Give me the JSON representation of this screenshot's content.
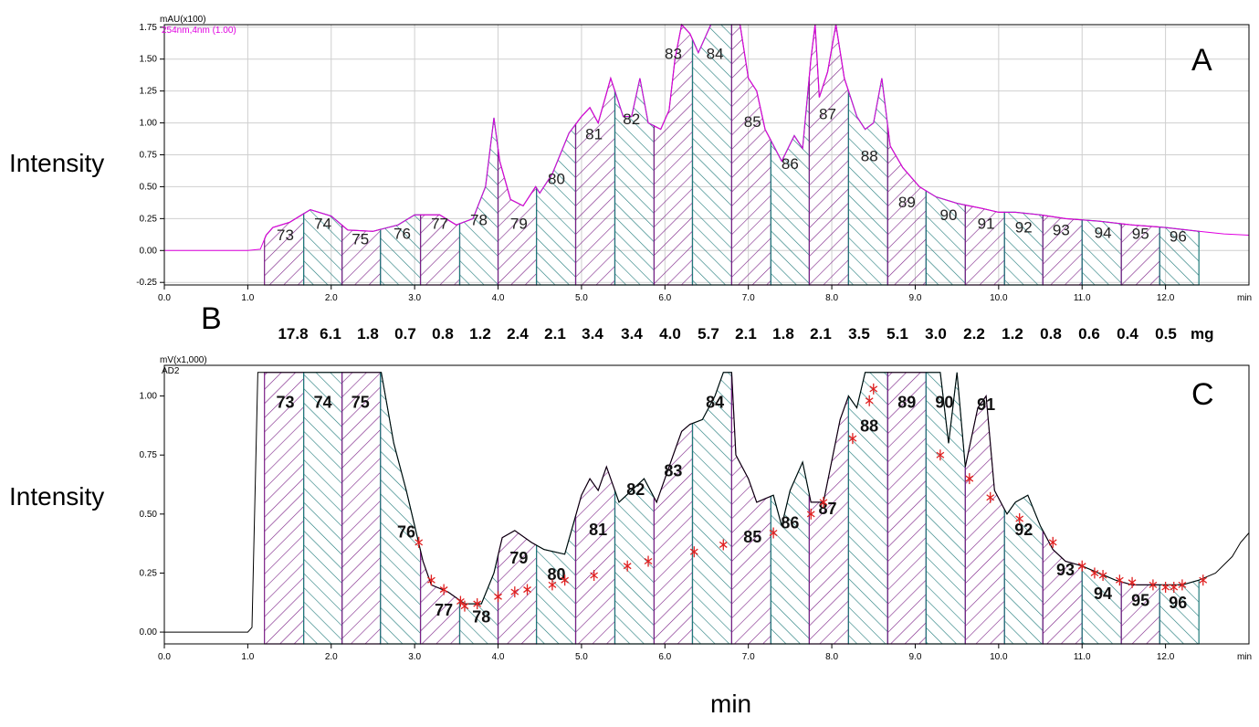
{
  "y_axis_label": "Intensity",
  "x_axis_label": "min",
  "panel_b_letter": "B",
  "mass_unit": "mg",
  "masses": [
    "17.8",
    "6.1",
    "1.8",
    "0.7",
    "0.8",
    "1.2",
    "2.4",
    "2.1",
    "3.4",
    "3.4",
    "4.0",
    "5.7",
    "2.1",
    "1.8",
    "2.1",
    "3.5",
    "5.1",
    "3.0",
    "2.2",
    "1.2",
    "0.8",
    "0.6",
    "0.4",
    "0.5"
  ],
  "colors": {
    "purple": "#7b1f86",
    "teal": "#1f7a7a",
    "trace_a": "#2f6a8f",
    "trace_c": "#1f6f6f",
    "magenta": "#e000e0",
    "marker": "#e02020"
  },
  "chart_data": [
    {
      "type": "area",
      "panel": "A",
      "unit_label": "mAU(x100)",
      "channel_label": "254nm,4nm (1.00)",
      "xlabel": "min",
      "xlim": [
        0,
        13.0
      ],
      "ylim": [
        -0.27,
        1.77
      ],
      "x_ticks": [
        0.0,
        1.0,
        2.0,
        3.0,
        4.0,
        5.0,
        6.0,
        7.0,
        8.0,
        9.0,
        10.0,
        11.0,
        12.0
      ],
      "y_ticks": [
        -0.25,
        0.0,
        0.25,
        0.5,
        0.75,
        1.0,
        1.25,
        1.5,
        1.75
      ],
      "grid": true,
      "boundaries": [
        1.2,
        1.67,
        2.13,
        2.59,
        3.07,
        3.54,
        4.0,
        4.46,
        4.93,
        5.4,
        5.87,
        6.33,
        6.8,
        7.27,
        7.73,
        8.2,
        8.67,
        9.13,
        9.6,
        10.07,
        10.53,
        11.0,
        11.47,
        11.93,
        12.4
      ],
      "fractions": [
        "73",
        "74",
        "75",
        "76",
        "77",
        "78",
        "79",
        "80",
        "81",
        "82",
        "83",
        "84",
        "85",
        "86",
        "87",
        "88",
        "89",
        "90",
        "91",
        "92",
        "93",
        "94",
        "95",
        "96"
      ],
      "trace": [
        [
          0,
          0
        ],
        [
          1.0,
          0
        ],
        [
          1.15,
          0.01
        ],
        [
          1.22,
          0.12
        ],
        [
          1.3,
          0.18
        ],
        [
          1.5,
          0.22
        ],
        [
          1.75,
          0.32
        ],
        [
          2.0,
          0.27
        ],
        [
          2.2,
          0.16
        ],
        [
          2.5,
          0.15
        ],
        [
          2.8,
          0.2
        ],
        [
          3.0,
          0.28
        ],
        [
          3.3,
          0.28
        ],
        [
          3.5,
          0.2
        ],
        [
          3.7,
          0.25
        ],
        [
          3.85,
          0.5
        ],
        [
          3.95,
          1.04
        ],
        [
          4.02,
          0.7
        ],
        [
          4.15,
          0.4
        ],
        [
          4.3,
          0.35
        ],
        [
          4.45,
          0.5
        ],
        [
          4.5,
          0.45
        ],
        [
          4.65,
          0.6
        ],
        [
          4.85,
          0.92
        ],
        [
          5.0,
          1.05
        ],
        [
          5.1,
          1.12
        ],
        [
          5.2,
          1.0
        ],
        [
          5.35,
          1.35
        ],
        [
          5.5,
          1.05
        ],
        [
          5.6,
          1.05
        ],
        [
          5.7,
          1.35
        ],
        [
          5.8,
          1.0
        ],
        [
          5.95,
          0.95
        ],
        [
          6.05,
          1.1
        ],
        [
          6.12,
          1.5
        ],
        [
          6.2,
          1.85
        ],
        [
          6.3,
          1.7
        ],
        [
          6.4,
          1.55
        ],
        [
          6.55,
          1.85
        ],
        [
          6.9,
          1.85
        ],
        [
          7.0,
          1.35
        ],
        [
          7.1,
          1.25
        ],
        [
          7.2,
          0.95
        ],
        [
          7.4,
          0.7
        ],
        [
          7.55,
          0.9
        ],
        [
          7.65,
          0.8
        ],
        [
          7.75,
          1.5
        ],
        [
          7.8,
          2.0
        ],
        [
          7.85,
          1.2
        ],
        [
          7.95,
          1.4
        ],
        [
          8.05,
          1.8
        ],
        [
          8.15,
          1.35
        ],
        [
          8.3,
          1.05
        ],
        [
          8.4,
          0.95
        ],
        [
          8.5,
          1.0
        ],
        [
          8.6,
          1.35
        ],
        [
          8.7,
          0.82
        ],
        [
          8.85,
          0.65
        ],
        [
          9.05,
          0.5
        ],
        [
          9.25,
          0.42
        ],
        [
          9.5,
          0.37
        ],
        [
          9.8,
          0.33
        ],
        [
          10.0,
          0.3
        ],
        [
          10.2,
          0.3
        ],
        [
          10.5,
          0.28
        ],
        [
          10.8,
          0.25
        ],
        [
          11.2,
          0.23
        ],
        [
          11.6,
          0.2
        ],
        [
          12.0,
          0.18
        ],
        [
          12.4,
          0.15
        ],
        [
          12.7,
          0.13
        ],
        [
          13.0,
          0.12
        ]
      ]
    },
    {
      "type": "area",
      "panel": "C",
      "unit_label": "mV(x1,000)",
      "channel_label": "AD2",
      "xlabel": "min",
      "xlim": [
        0,
        13.0
      ],
      "ylim": [
        -0.05,
        1.13
      ],
      "x_ticks": [
        0.0,
        1.0,
        2.0,
        3.0,
        4.0,
        5.0,
        6.0,
        7.0,
        8.0,
        9.0,
        10.0,
        11.0,
        12.0
      ],
      "y_ticks": [
        0.0,
        0.25,
        0.5,
        0.75,
        1.0
      ],
      "grid": false,
      "boundaries": [
        1.2,
        1.67,
        2.13,
        2.59,
        3.07,
        3.54,
        4.0,
        4.46,
        4.93,
        5.4,
        5.87,
        6.33,
        6.8,
        7.27,
        7.73,
        8.2,
        8.67,
        9.13,
        9.6,
        10.07,
        10.53,
        11.0,
        11.47,
        11.93,
        12.4
      ],
      "fractions": [
        "73",
        "74",
        "75",
        "76",
        "77",
        "78",
        "79",
        "80",
        "81",
        "82",
        "83",
        "84",
        "85",
        "86",
        "87",
        "88",
        "89",
        "90",
        "91",
        "92",
        "93",
        "94",
        "95",
        "96"
      ],
      "trace": [
        [
          0,
          0
        ],
        [
          1.0,
          0
        ],
        [
          1.05,
          0.02
        ],
        [
          1.12,
          1.1
        ],
        [
          2.6,
          1.1
        ],
        [
          2.75,
          0.8
        ],
        [
          2.9,
          0.6
        ],
        [
          3.0,
          0.45
        ],
        [
          3.1,
          0.3
        ],
        [
          3.2,
          0.2
        ],
        [
          3.4,
          0.17
        ],
        [
          3.6,
          0.12
        ],
        [
          3.8,
          0.12
        ],
        [
          3.95,
          0.25
        ],
        [
          4.05,
          0.4
        ],
        [
          4.2,
          0.43
        ],
        [
          4.4,
          0.38
        ],
        [
          4.55,
          0.35
        ],
        [
          4.8,
          0.33
        ],
        [
          5.0,
          0.58
        ],
        [
          5.1,
          0.65
        ],
        [
          5.2,
          0.6
        ],
        [
          5.3,
          0.7
        ],
        [
          5.45,
          0.55
        ],
        [
          5.6,
          0.6
        ],
        [
          5.75,
          0.65
        ],
        [
          5.9,
          0.55
        ],
        [
          6.1,
          0.75
        ],
        [
          6.2,
          0.85
        ],
        [
          6.3,
          0.88
        ],
        [
          6.45,
          0.9
        ],
        [
          6.6,
          1.0
        ],
        [
          6.7,
          1.1
        ],
        [
          6.8,
          1.1
        ],
        [
          6.85,
          0.75
        ],
        [
          7.0,
          0.65
        ],
        [
          7.1,
          0.55
        ],
        [
          7.3,
          0.58
        ],
        [
          7.4,
          0.45
        ],
        [
          7.5,
          0.6
        ],
        [
          7.65,
          0.72
        ],
        [
          7.75,
          0.55
        ],
        [
          7.9,
          0.55
        ],
        [
          8.1,
          0.9
        ],
        [
          8.2,
          1.0
        ],
        [
          8.3,
          0.95
        ],
        [
          8.4,
          1.1
        ],
        [
          9.3,
          1.1
        ],
        [
          9.4,
          0.8
        ],
        [
          9.5,
          1.1
        ],
        [
          9.6,
          0.7
        ],
        [
          9.75,
          0.95
        ],
        [
          9.85,
          1.0
        ],
        [
          9.95,
          0.6
        ],
        [
          10.1,
          0.5
        ],
        [
          10.2,
          0.55
        ],
        [
          10.35,
          0.58
        ],
        [
          10.5,
          0.45
        ],
        [
          10.65,
          0.35
        ],
        [
          10.8,
          0.3
        ],
        [
          11.0,
          0.28
        ],
        [
          11.2,
          0.25
        ],
        [
          11.4,
          0.22
        ],
        [
          11.6,
          0.2
        ],
        [
          11.9,
          0.2
        ],
        [
          12.2,
          0.2
        ],
        [
          12.4,
          0.22
        ],
        [
          12.6,
          0.25
        ],
        [
          12.8,
          0.32
        ],
        [
          12.9,
          0.38
        ],
        [
          13.0,
          0.42
        ]
      ],
      "markers": [
        [
          3.05,
          0.38
        ],
        [
          3.2,
          0.22
        ],
        [
          3.35,
          0.18
        ],
        [
          3.55,
          0.13
        ],
        [
          3.6,
          0.11
        ],
        [
          3.75,
          0.12
        ],
        [
          4.0,
          0.15
        ],
        [
          4.2,
          0.17
        ],
        [
          4.35,
          0.18
        ],
        [
          4.65,
          0.2
        ],
        [
          4.8,
          0.22
        ],
        [
          5.15,
          0.24
        ],
        [
          5.55,
          0.28
        ],
        [
          5.8,
          0.3
        ],
        [
          6.35,
          0.34
        ],
        [
          6.7,
          0.37
        ],
        [
          7.3,
          0.42
        ],
        [
          7.75,
          0.5
        ],
        [
          7.9,
          0.55
        ],
        [
          8.25,
          0.82
        ],
        [
          8.45,
          0.98
        ],
        [
          8.5,
          1.03
        ],
        [
          9.3,
          0.75
        ],
        [
          9.65,
          0.65
        ],
        [
          9.9,
          0.57
        ],
        [
          10.25,
          0.48
        ],
        [
          10.65,
          0.38
        ],
        [
          11.0,
          0.28
        ],
        [
          11.15,
          0.25
        ],
        [
          11.25,
          0.24
        ],
        [
          11.45,
          0.22
        ],
        [
          11.6,
          0.21
        ],
        [
          11.85,
          0.2
        ],
        [
          12.0,
          0.19
        ],
        [
          12.1,
          0.19
        ],
        [
          12.2,
          0.2
        ],
        [
          12.45,
          0.22
        ]
      ]
    }
  ],
  "fraction_labels_c": [
    {
      "label": "73",
      "x": 1.45,
      "y": 0.95
    },
    {
      "label": "74",
      "x": 1.9,
      "y": 0.95
    },
    {
      "label": "75",
      "x": 2.35,
      "y": 0.95
    },
    {
      "label": "76",
      "x": 2.9,
      "y": 0.4
    },
    {
      "label": "77",
      "x": 3.35,
      "y": 0.07
    },
    {
      "label": "78",
      "x": 3.8,
      "y": 0.04
    },
    {
      "label": "79",
      "x": 4.25,
      "y": 0.29
    },
    {
      "label": "80",
      "x": 4.7,
      "y": 0.22
    },
    {
      "label": "81",
      "x": 5.2,
      "y": 0.41
    },
    {
      "label": "82",
      "x": 5.65,
      "y": 0.58
    },
    {
      "label": "83",
      "x": 6.1,
      "y": 0.66
    },
    {
      "label": "84",
      "x": 6.6,
      "y": 0.95
    },
    {
      "label": "85",
      "x": 7.05,
      "y": 0.38
    },
    {
      "label": "86",
      "x": 7.5,
      "y": 0.44
    },
    {
      "label": "87",
      "x": 7.95,
      "y": 0.5
    },
    {
      "label": "88",
      "x": 8.45,
      "y": 0.85
    },
    {
      "label": "89",
      "x": 8.9,
      "y": 0.95
    },
    {
      "label": "90",
      "x": 9.35,
      "y": 0.95
    },
    {
      "label": "91",
      "x": 9.85,
      "y": 0.94
    },
    {
      "label": "92",
      "x": 10.3,
      "y": 0.41
    },
    {
      "label": "93",
      "x": 10.8,
      "y": 0.24
    },
    {
      "label": "94",
      "x": 11.25,
      "y": 0.14
    },
    {
      "label": "95",
      "x": 11.7,
      "y": 0.11
    },
    {
      "label": "96",
      "x": 12.15,
      "y": 0.1
    }
  ],
  "fraction_labels_a": [
    {
      "label": "73",
      "x": 1.45,
      "y": 0.08
    },
    {
      "label": "74",
      "x": 1.9,
      "y": 0.17
    },
    {
      "label": "75",
      "x": 2.35,
      "y": 0.05
    },
    {
      "label": "76",
      "x": 2.85,
      "y": 0.09
    },
    {
      "label": "77",
      "x": 3.3,
      "y": 0.17
    },
    {
      "label": "78",
      "x": 3.77,
      "y": 0.2
    },
    {
      "label": "79",
      "x": 4.25,
      "y": 0.17
    },
    {
      "label": "80",
      "x": 4.7,
      "y": 0.52
    },
    {
      "label": "81",
      "x": 5.15,
      "y": 0.87
    },
    {
      "label": "82",
      "x": 5.6,
      "y": 0.99
    },
    {
      "label": "83",
      "x": 6.1,
      "y": 1.5
    },
    {
      "label": "84",
      "x": 6.6,
      "y": 1.5
    },
    {
      "label": "85",
      "x": 7.05,
      "y": 0.97
    },
    {
      "label": "86",
      "x": 7.5,
      "y": 0.64
    },
    {
      "label": "87",
      "x": 7.95,
      "y": 1.03
    },
    {
      "label": "88",
      "x": 8.45,
      "y": 0.7
    },
    {
      "label": "89",
      "x": 8.9,
      "y": 0.34
    },
    {
      "label": "90",
      "x": 9.4,
      "y": 0.24
    },
    {
      "label": "91",
      "x": 9.85,
      "y": 0.17
    },
    {
      "label": "92",
      "x": 10.3,
      "y": 0.14
    },
    {
      "label": "93",
      "x": 10.75,
      "y": 0.12
    },
    {
      "label": "94",
      "x": 11.25,
      "y": 0.1
    },
    {
      "label": "95",
      "x": 11.7,
      "y": 0.09
    },
    {
      "label": "96",
      "x": 12.15,
      "y": 0.07
    }
  ]
}
